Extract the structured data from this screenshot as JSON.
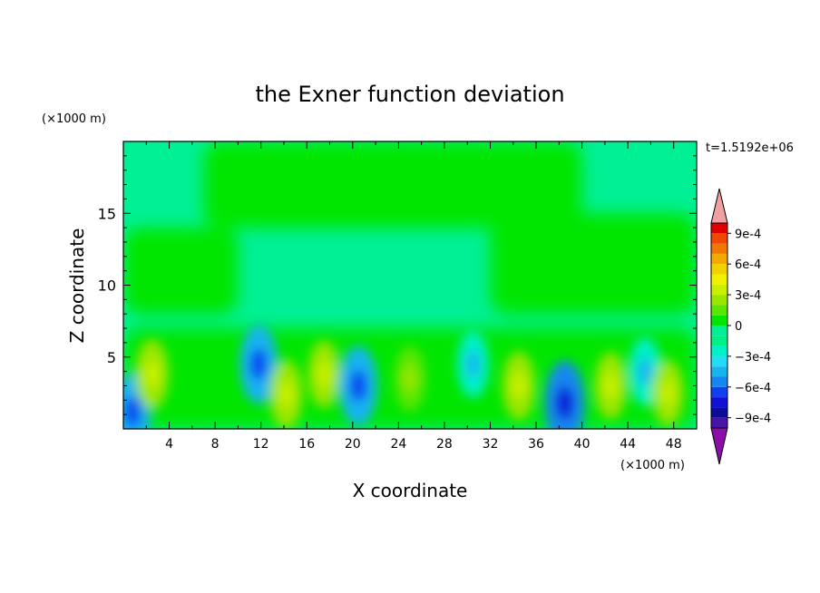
{
  "chart_data": {
    "type": "heatmap",
    "title": "the Exner function deviation",
    "xlabel": "X coordinate",
    "ylabel": "Z coordinate",
    "x_units": "(×1000 m)",
    "y_units": "(×1000 m)",
    "time_label": "t=1.5192e+06",
    "xlim": [
      0,
      50
    ],
    "ylim": [
      0,
      20
    ],
    "x_ticks": [
      4,
      8,
      12,
      16,
      20,
      24,
      28,
      32,
      36,
      40,
      44,
      48
    ],
    "y_ticks": [
      5,
      10,
      15
    ],
    "colorbar": {
      "levels": [
        -0.0011,
        -0.001,
        -0.0009,
        -0.0008,
        -0.0007,
        -0.0006,
        -0.0005,
        -0.0004,
        -0.0003,
        -0.0002,
        -0.0001,
        0,
        0.0001,
        0.0002,
        0.0003,
        0.0004,
        0.0005,
        0.0006,
        0.0007,
        0.0008,
        0.0009,
        0.001,
        0.0011
      ],
      "colors": [
        "#8b0ea8",
        "#4b12a8",
        "#0c0c9c",
        "#1010d8",
        "#1040f0",
        "#1488f0",
        "#18b4f0",
        "#22dcf8",
        "#00f0c8",
        "#00f088",
        "#00f096",
        "#00e600",
        "#5ae600",
        "#9ae600",
        "#c8f000",
        "#f0f000",
        "#f0d200",
        "#f0aa00",
        "#f07800",
        "#f04800",
        "#e00000",
        "#f0a0a0"
      ],
      "tick_values": [
        0.0009,
        0.0006,
        0.0003,
        0,
        -0.0003,
        -0.0006,
        -0.0009
      ],
      "tick_labels": [
        "9e-4",
        "6e-4",
        "3e-4",
        "0",
        "−3e-4",
        "−6e-4",
        "−9e-4"
      ],
      "extend": "both"
    },
    "regions": [
      {
        "name": "upper-background",
        "value": -8e-05,
        "x": [
          0,
          50
        ],
        "y": [
          0,
          20
        ]
      },
      {
        "name": "upper-green-band",
        "value": 3e-05,
        "x": [
          7,
          40
        ],
        "y": [
          14,
          20
        ]
      },
      {
        "name": "left-green-band",
        "value": 3e-05,
        "x": [
          0,
          10
        ],
        "y": [
          8,
          14
        ]
      },
      {
        "name": "right-green-band",
        "value": 3e-05,
        "x": [
          32,
          50
        ],
        "y": [
          8,
          15
        ]
      },
      {
        "name": "lower-mixed-layer",
        "value": 2e-05,
        "x": [
          0,
          50
        ],
        "y": [
          0,
          7
        ]
      }
    ],
    "features": [
      {
        "x": 0.8,
        "z": 1.2,
        "value": -0.00045
      },
      {
        "x": 2.5,
        "z": 3.8,
        "value": 0.00028
      },
      {
        "x": 11.8,
        "z": 4.5,
        "value": -0.00048
      },
      {
        "x": 14.2,
        "z": 2.4,
        "value": 0.00026
      },
      {
        "x": 17.5,
        "z": 3.8,
        "value": 0.00022
      },
      {
        "x": 20.5,
        "z": 3.0,
        "value": -0.0005
      },
      {
        "x": 25.0,
        "z": 3.5,
        "value": 0.00018
      },
      {
        "x": 30.5,
        "z": 4.5,
        "value": -0.00022
      },
      {
        "x": 34.5,
        "z": 3.0,
        "value": 0.00025
      },
      {
        "x": 38.5,
        "z": 1.8,
        "value": -0.0006
      },
      {
        "x": 42.5,
        "z": 3.0,
        "value": 0.00022
      },
      {
        "x": 45.5,
        "z": 4.0,
        "value": -0.00025
      },
      {
        "x": 47.5,
        "z": 2.5,
        "value": 0.0002
      }
    ]
  }
}
